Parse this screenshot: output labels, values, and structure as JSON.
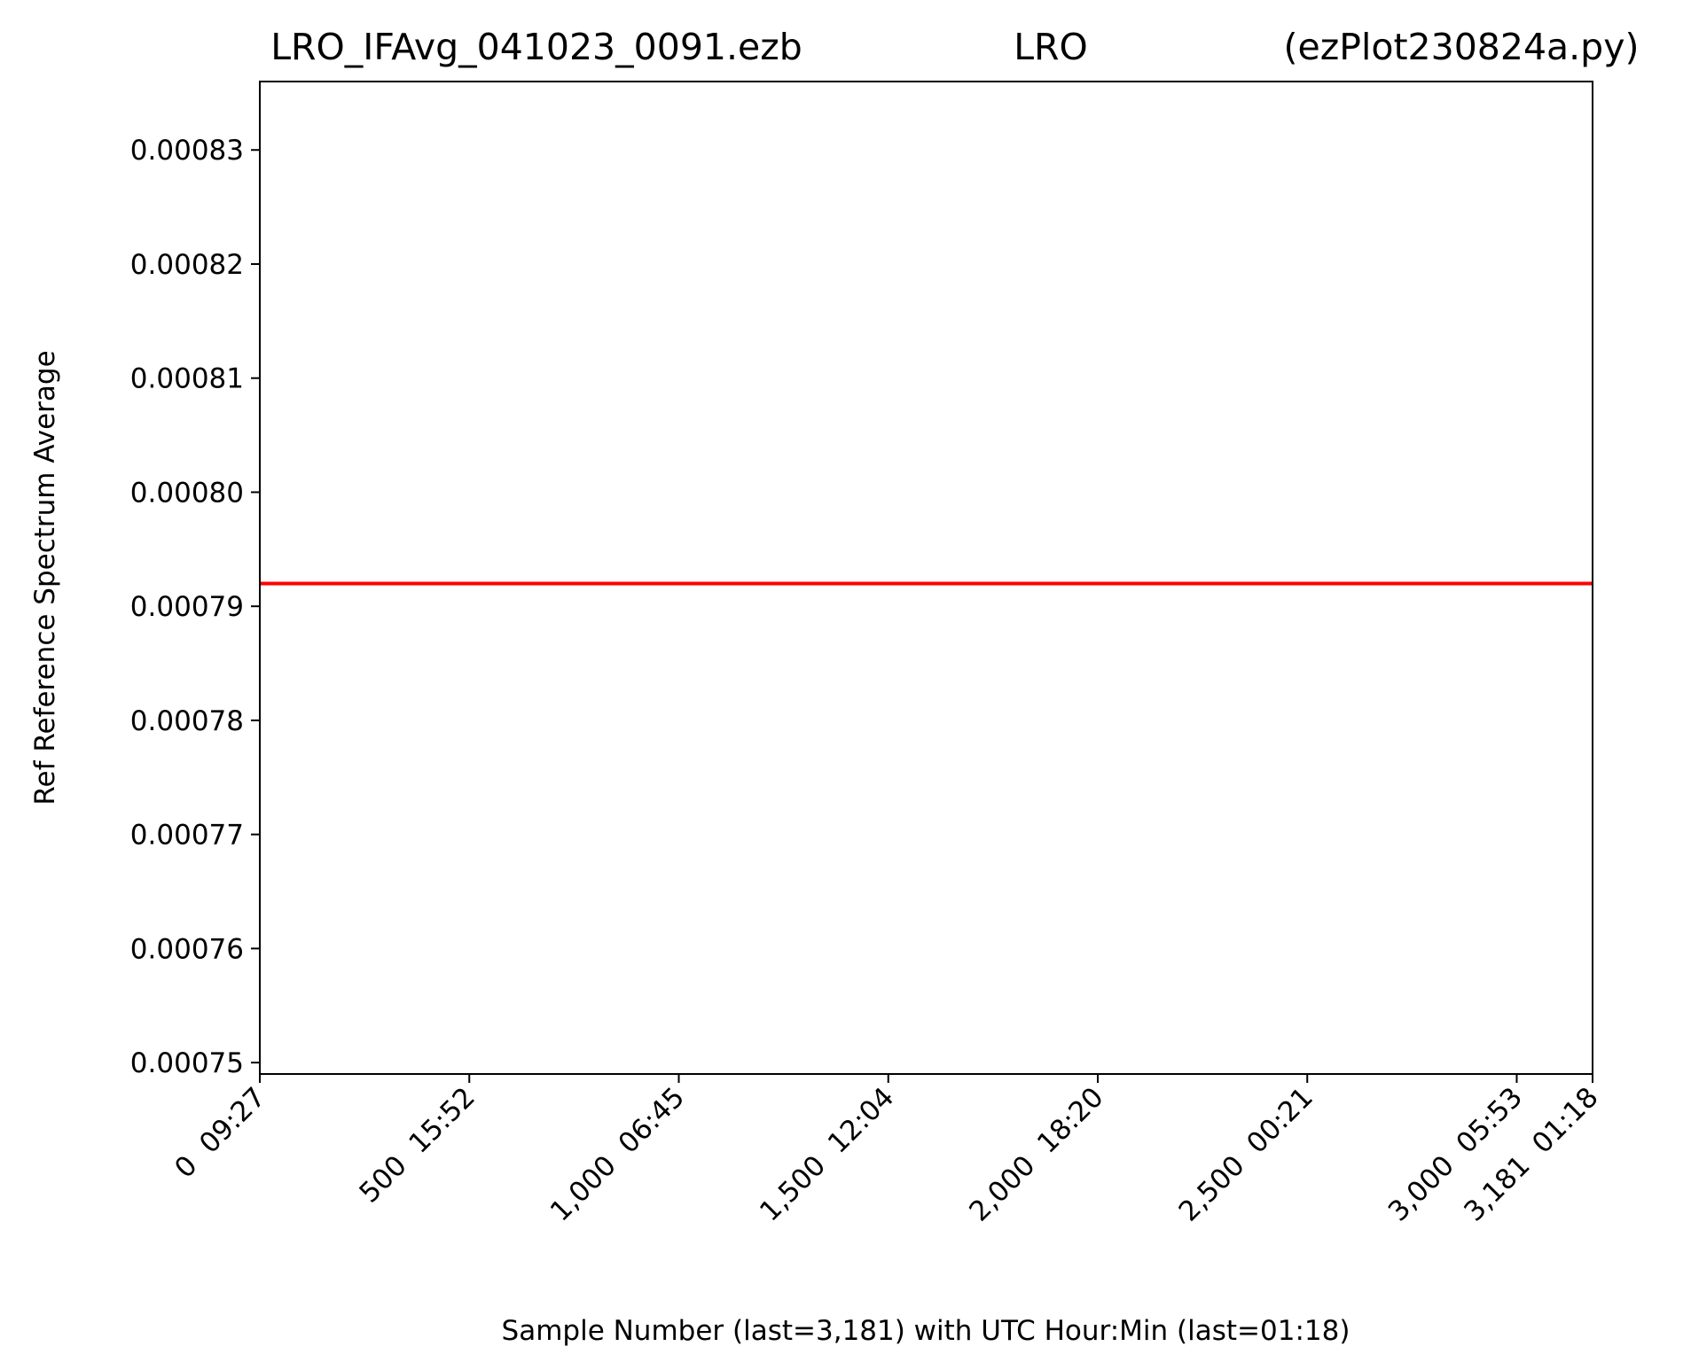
{
  "chart_data": {
    "type": "line",
    "title_left": "LRO_IFAvg_041023_0091.ezb",
    "title_center": "LRO",
    "title_right": "(ezPlot230824a.py)",
    "xlabel": "Sample Number (last=3,181) with UTC Hour:Min (last=01:18)",
    "ylabel": "Ref Reference Spectrum Average",
    "xlim": [
      0,
      3181
    ],
    "ylim": [
      0.000749,
      0.000836
    ],
    "x_ticks": [
      {
        "value": 0,
        "label": "0  09:27"
      },
      {
        "value": 500,
        "label": "500  15:52"
      },
      {
        "value": 1000,
        "label": "1,000  06:45"
      },
      {
        "value": 1500,
        "label": "1,500  12:04"
      },
      {
        "value": 2000,
        "label": "2,000  18:20"
      },
      {
        "value": 2500,
        "label": "2,500  00:21"
      },
      {
        "value": 3000,
        "label": "3,000  05:53"
      },
      {
        "value": 3181,
        "label": "3,181  01:18"
      }
    ],
    "y_ticks": [
      {
        "value": 0.00075,
        "label": "0.00075"
      },
      {
        "value": 0.00076,
        "label": "0.00076"
      },
      {
        "value": 0.00077,
        "label": "0.00077"
      },
      {
        "value": 0.00078,
        "label": "0.00078"
      },
      {
        "value": 0.00079,
        "label": "0.00079"
      },
      {
        "value": 0.0008,
        "label": "0.00080"
      },
      {
        "value": 0.00081,
        "label": "0.00081"
      },
      {
        "value": 0.00082,
        "label": "0.00082"
      },
      {
        "value": 0.00083,
        "label": "0.00083"
      }
    ],
    "series": [
      {
        "color": "#ff0000",
        "x": [
          0,
          3181
        ],
        "y": [
          0.000792,
          0.000792
        ]
      }
    ],
    "grid": false,
    "legend": "none"
  }
}
